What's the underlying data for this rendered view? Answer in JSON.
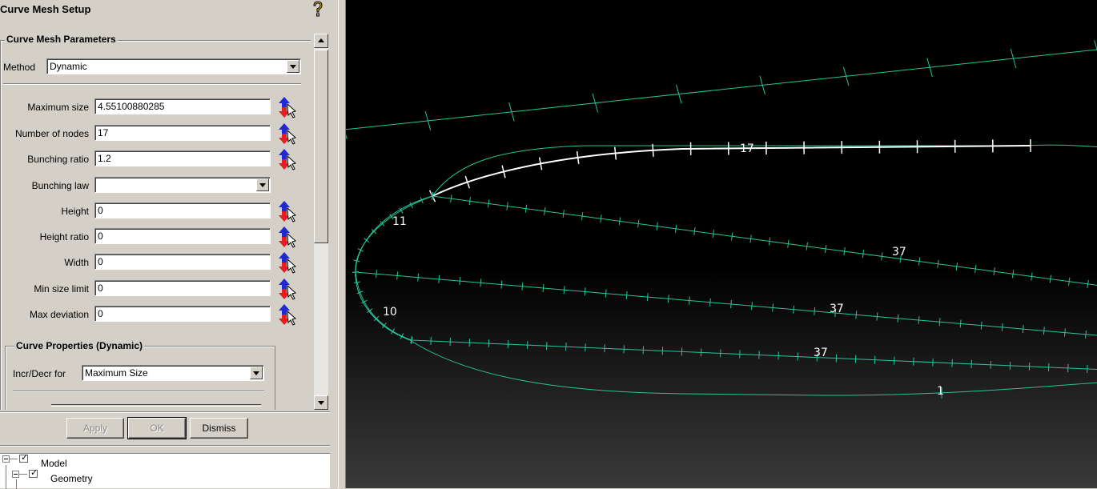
{
  "dialog": {
    "title": "Curve Mesh Setup",
    "help_icon": "help-question-icon"
  },
  "parameters": {
    "group_title": "Curve Mesh Parameters",
    "method_label": "Method",
    "method_value": "Dynamic",
    "fields": [
      {
        "label": "Maximum size",
        "value": "4.55100880285"
      },
      {
        "label": "Number of nodes",
        "value": "17"
      },
      {
        "label": "Bunching ratio",
        "value": "1.2"
      },
      {
        "label": "Bunching law",
        "value": ""
      },
      {
        "label": "Height",
        "value": "0"
      },
      {
        "label": "Height ratio",
        "value": "0"
      },
      {
        "label": "Width",
        "value": "0"
      },
      {
        "label": "Min size limit",
        "value": "0"
      },
      {
        "label": "Max deviation",
        "value": "0"
      }
    ],
    "pick_icon": "select-curve-arrows-icon"
  },
  "curve_properties": {
    "group_title": "Curve Properties (Dynamic)",
    "incr_label": "Incr/Decr for",
    "incr_value": "Maximum Size"
  },
  "buttons": {
    "apply": "Apply",
    "ok": "OK",
    "dismiss": "Dismiss"
  },
  "tree": {
    "items": [
      {
        "label": "Model"
      },
      {
        "label": "Geometry"
      }
    ]
  },
  "viewport": {
    "curve_labels": [
      "17",
      "11",
      "37",
      "10",
      "37",
      "37",
      "1"
    ],
    "colors": {
      "mesh": "#26c49a",
      "selected": "#ffffff",
      "background": "#000000"
    }
  }
}
